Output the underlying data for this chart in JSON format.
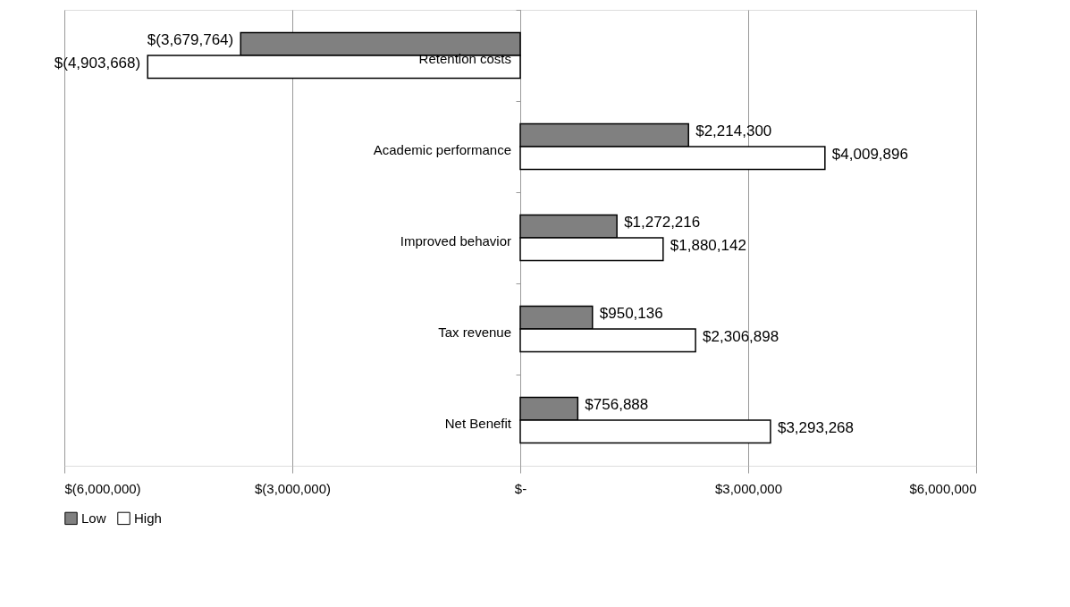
{
  "chart_data": {
    "type": "bar",
    "orientation": "horizontal",
    "categories": [
      "Retention costs",
      "Academic performance",
      "Improved behavior",
      "Tax revenue",
      "Net Benefit"
    ],
    "series": [
      {
        "name": "Low",
        "color": "#808080",
        "values": [
          -3679764,
          2214300,
          1272216,
          950136,
          756888
        ],
        "value_labels": [
          "$(3,679,764)",
          "$2,214,300",
          "$1,272,216",
          "$950,136",
          "$756,888"
        ]
      },
      {
        "name": "High",
        "color": "#ffffff",
        "values": [
          -4903668,
          4009896,
          1880142,
          2306898,
          3293268
        ],
        "value_labels": [
          "$(4,903,668)",
          "$4,009,896",
          "$1,880,142",
          "$2,306,898",
          "$3,293,268"
        ]
      }
    ],
    "xlim": [
      -6000000,
      6000000
    ],
    "xticks": [
      {
        "value": -6000000,
        "label": "$(6,000,000)"
      },
      {
        "value": -3000000,
        "label": "$(3,000,000)"
      },
      {
        "value": 0,
        "label": "$-"
      },
      {
        "value": 3000000,
        "label": "$3,000,000"
      },
      {
        "value": 6000000,
        "label": "$6,000,000"
      }
    ],
    "grid": "x",
    "legend": "bottom"
  }
}
